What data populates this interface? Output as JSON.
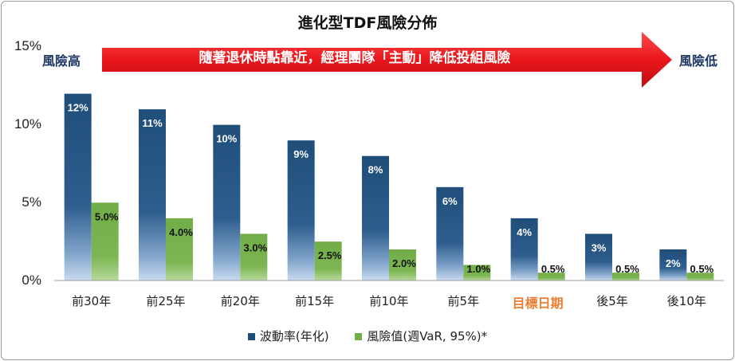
{
  "chart_data": {
    "type": "bar",
    "title": "進化型TDF風險分佈",
    "categories": [
      "前30年",
      "前25年",
      "前20年",
      "前15年",
      "前10年",
      "前5年",
      "目標日期",
      "後5年",
      "後10年"
    ],
    "highlight_category": "目標日期",
    "series": [
      {
        "name": "波動率(年化)",
        "color": "#1f4e79",
        "values": [
          12,
          11,
          10,
          9,
          8,
          6,
          4,
          3,
          2
        ],
        "labels": [
          "12%",
          "11%",
          "10%",
          "9%",
          "8%",
          "6%",
          "4%",
          "3%",
          "2%"
        ]
      },
      {
        "name": "風險值(週VaR, 95%)*",
        "color": "#70ad47",
        "values": [
          5.0,
          4.0,
          3.0,
          2.5,
          2.0,
          1.0,
          0.5,
          0.5,
          0.5
        ],
        "labels": [
          "5.0%",
          "4.0%",
          "3.0%",
          "2.5%",
          "2.0%",
          "1.0%",
          "0.5%",
          "0.5%",
          "0.5%"
        ]
      }
    ],
    "ylim": [
      0,
      15
    ],
    "yticks": [
      "0%",
      "5%",
      "10%",
      "15%"
    ],
    "ytick_values": [
      0,
      5,
      10,
      15
    ],
    "grid": false,
    "legend_position": "bottom"
  },
  "annotation": {
    "arrow_text": "隨著退休時點靠近，經理團隊「主動」降低投組風險",
    "left_label": "風險高",
    "right_label": "風險低",
    "arrow_color": "#e8171c"
  }
}
